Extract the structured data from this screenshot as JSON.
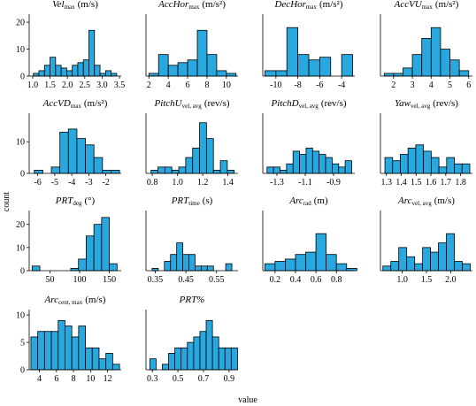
{
  "chart_data": [
    {
      "type": "histogram",
      "title": {
        "name": "Vel",
        "sub": "max",
        "unit": "(m/s)"
      },
      "color": "#29a8e0",
      "bins": [
        1.02,
        1.18,
        1.34,
        1.5,
        1.66,
        1.82,
        1.98,
        2.14,
        2.3,
        2.46,
        2.62,
        2.78,
        2.94,
        3.1,
        3.26,
        3.42
      ],
      "values": [
        1,
        2,
        4,
        7,
        4,
        3,
        2,
        4,
        5,
        6,
        17,
        4,
        1,
        2,
        1
      ],
      "xlim": [
        0.9,
        3.55
      ],
      "ylim": [
        0,
        23
      ],
      "xticks": [
        {
          "value": 1,
          "label": "1.0"
        },
        1.5,
        {
          "value": 2,
          "label": "2.0"
        },
        2.5,
        {
          "value": 3,
          "label": "3.0"
        },
        3.5
      ],
      "yticks": [
        0,
        10,
        20
      ]
    },
    {
      "type": "histogram",
      "title": {
        "name": "AccHor",
        "sub": "max",
        "unit": "(m/s²)"
      },
      "color": "#29a8e0",
      "bins": [
        2,
        3,
        4,
        5,
        6,
        7,
        8,
        9,
        10,
        11
      ],
      "values": [
        1,
        8,
        4,
        5,
        6,
        17,
        8,
        2,
        1
      ],
      "xlim": [
        1.7,
        11.2
      ],
      "ylim": [
        0,
        23
      ],
      "xticks": [
        2,
        4,
        6,
        8,
        10
      ]
    },
    {
      "type": "histogram",
      "title": {
        "name": "DecHor",
        "sub": "max",
        "unit": "(m/s²)"
      },
      "color": "#29a8e0",
      "bins": [
        -11,
        -10,
        -9,
        -8,
        -7,
        -6,
        -5,
        -4,
        -3
      ],
      "values": [
        2,
        2,
        18,
        8,
        6,
        7,
        0,
        8
      ],
      "xlim": [
        -11.2,
        -2.8
      ],
      "ylim": [
        0,
        23
      ],
      "xticks": [
        -10,
        -8,
        -6,
        -4
      ]
    },
    {
      "type": "histogram",
      "title": {
        "name": "AccVU",
        "sub": "max",
        "unit": "(m/s²)"
      },
      "color": "#29a8e0",
      "bins": [
        1.5,
        2,
        2.5,
        3,
        3.5,
        4,
        4.5,
        5,
        5.5,
        6
      ],
      "values": [
        1,
        1,
        3,
        8,
        14,
        18,
        10,
        6,
        2
      ],
      "xlim": [
        1.3,
        6.2
      ],
      "ylim": [
        0,
        23
      ],
      "xticks": [
        2,
        3,
        4,
        5,
        6
      ]
    },
    {
      "type": "histogram",
      "title": {
        "name": "AccVD",
        "sub": "max",
        "unit": "(m/s²)"
      },
      "color": "#29a8e0",
      "bins": [
        -6.2,
        -5.7,
        -5.2,
        -4.7,
        -4.2,
        -3.7,
        -3.2,
        -2.7,
        -2.2,
        -1.7,
        -1.2
      ],
      "values": [
        1,
        0,
        2,
        13,
        14,
        11,
        9,
        5,
        1,
        1
      ],
      "xlim": [
        -6.5,
        -1.1
      ],
      "ylim": [
        0,
        19
      ],
      "xticks": [
        -6,
        -5,
        -4,
        -3,
        -2
      ],
      "yticks": [
        0,
        10
      ]
    },
    {
      "type": "histogram",
      "title": {
        "name": "PitchU",
        "sub": "vel, avg",
        "unit": "(rev/s)"
      },
      "color": "#29a8e0",
      "bins": [
        0.79,
        0.845,
        0.9,
        0.955,
        1.01,
        1.065,
        1.12,
        1.175,
        1.23,
        1.285,
        1.34,
        1.395,
        1.45
      ],
      "values": [
        1,
        2,
        2,
        1,
        2,
        5,
        8,
        16,
        11,
        1,
        4,
        1
      ],
      "xlim": [
        0.75,
        1.48
      ],
      "ylim": [
        0,
        19
      ],
      "xticks": [
        0.8,
        {
          "value": 1,
          "label": "1.0"
        },
        1.2,
        1.4
      ]
    },
    {
      "type": "histogram",
      "title": {
        "name": "PitchD",
        "sub": "vel, avg",
        "unit": "(rev/s)"
      },
      "color": "#29a8e0",
      "bins": [
        -1.37,
        -1.324,
        -1.278,
        -1.232,
        -1.186,
        -1.14,
        -1.094,
        -1.048,
        -1.002,
        -0.956,
        -0.91,
        -0.864,
        -0.818,
        -0.772
      ],
      "values": [
        2,
        2,
        1,
        3,
        7,
        6,
        8,
        7,
        6,
        5,
        3,
        2,
        4
      ],
      "xlim": [
        -1.4,
        -0.75
      ],
      "ylim": [
        0,
        19
      ],
      "xticks": [
        -1.3,
        -1.1,
        -0.9
      ]
    },
    {
      "type": "histogram",
      "title": {
        "name": "Yaw",
        "sub": "vel, avg",
        "unit": "(rev/s)"
      },
      "color": "#29a8e0",
      "bins": [
        1.29,
        1.342,
        1.394,
        1.446,
        1.498,
        1.55,
        1.602,
        1.654,
        1.706,
        1.758,
        1.81,
        1.862
      ],
      "values": [
        5,
        4,
        6,
        8,
        9,
        7,
        5,
        2,
        5,
        3,
        3
      ],
      "xlim": [
        1.26,
        1.88
      ],
      "ylim": [
        0,
        19
      ],
      "xticks": [
        1.3,
        1.4,
        1.5,
        1.6,
        1.7,
        1.8
      ]
    },
    {
      "type": "histogram",
      "title": {
        "name": "PRT",
        "sub": "deg",
        "unit": "(°)"
      },
      "color": "#29a8e0",
      "bins": [
        20,
        33,
        46,
        59,
        72,
        85,
        98,
        111,
        124,
        137,
        150,
        163
      ],
      "values": [
        2,
        0,
        0,
        0,
        0,
        1,
        5,
        15,
        20,
        23,
        3
      ],
      "xlim": [
        15,
        170
      ],
      "ylim": [
        0,
        26
      ],
      "xticks": [
        50,
        100,
        150
      ],
      "yticks": [
        0,
        10,
        20
      ]
    },
    {
      "type": "histogram",
      "title": {
        "name": "PRT",
        "sub": "time",
        "unit": "(s)"
      },
      "color": "#29a8e0",
      "bins": [
        0.34,
        0.36,
        0.38,
        0.4,
        0.42,
        0.44,
        0.46,
        0.48,
        0.5,
        0.52,
        0.54,
        0.56,
        0.58,
        0.6
      ],
      "values": [
        1,
        0,
        4,
        7,
        12,
        7,
        7,
        2,
        2,
        2,
        0,
        0,
        3
      ],
      "xlim": [
        0.32,
        0.62
      ],
      "ylim": [
        0,
        26
      ],
      "xticks": [
        0.35,
        0.45,
        0.55
      ]
    },
    {
      "type": "histogram",
      "title": {
        "name": "Arc",
        "sub": "rad",
        "unit": "(m)"
      },
      "color": "#29a8e0",
      "bins": [
        0.1,
        0.2,
        0.3,
        0.4,
        0.5,
        0.6,
        0.7,
        0.8,
        0.9,
        1.0
      ],
      "values": [
        3,
        4,
        5,
        7,
        8,
        16,
        7,
        3,
        1
      ],
      "xlim": [
        0.08,
        0.98
      ],
      "ylim": [
        0,
        26
      ],
      "xticks": [
        0.2,
        0.4,
        0.6,
        0.8
      ]
    },
    {
      "type": "histogram",
      "title": {
        "name": "Arc",
        "sub": "vel, avg",
        "unit": "(m/s)"
      },
      "color": "#29a8e0",
      "bins": [
        0.6,
        0.764,
        0.928,
        1.092,
        1.256,
        1.42,
        1.584,
        1.748,
        1.912,
        2.076,
        2.24,
        2.404
      ],
      "values": [
        2,
        4,
        10,
        6,
        3,
        10,
        8,
        12,
        16,
        4,
        3
      ],
      "xlim": [
        0.55,
        2.45
      ],
      "ylim": [
        0,
        26
      ],
      "xticks": [
        {
          "value": 1,
          "label": "1.0"
        },
        1.5,
        {
          "value": 2,
          "label": "2.0"
        }
      ]
    },
    {
      "type": "histogram",
      "title": {
        "name": "Arc",
        "sub": "cent, max",
        "unit": "(m/s)"
      },
      "color": "#29a8e0",
      "bins": [
        3,
        3.8,
        4.6,
        5.4,
        6.2,
        7,
        7.8,
        8.6,
        9.4,
        10.2,
        11,
        11.8,
        12.6,
        13.4
      ],
      "values": [
        6,
        7,
        7,
        7,
        9,
        8,
        6,
        8,
        4,
        4,
        2,
        3,
        1
      ],
      "xlim": [
        2.8,
        13.6
      ],
      "ylim": [
        0,
        11
      ],
      "xticks": [
        4,
        6,
        8,
        10,
        12
      ],
      "yticks": [
        0,
        5,
        10
      ]
    },
    {
      "type": "histogram",
      "title": {
        "name": "PRT%"
      },
      "color": "#29a8e0",
      "bins": [
        0.28,
        0.329,
        0.378,
        0.427,
        0.476,
        0.525,
        0.574,
        0.623,
        0.672,
        0.721,
        0.77,
        0.819,
        0.868,
        0.917,
        0.966
      ],
      "values": [
        2,
        0,
        1,
        3,
        4,
        4,
        5,
        6,
        7,
        9,
        6,
        4,
        4,
        4
      ],
      "xlim": [
        0.25,
        0.97
      ],
      "ylim": [
        0,
        11
      ],
      "xticks": [
        0.3,
        0.5,
        0.7,
        0.9
      ]
    }
  ],
  "y_label": "count",
  "x_label": "value"
}
